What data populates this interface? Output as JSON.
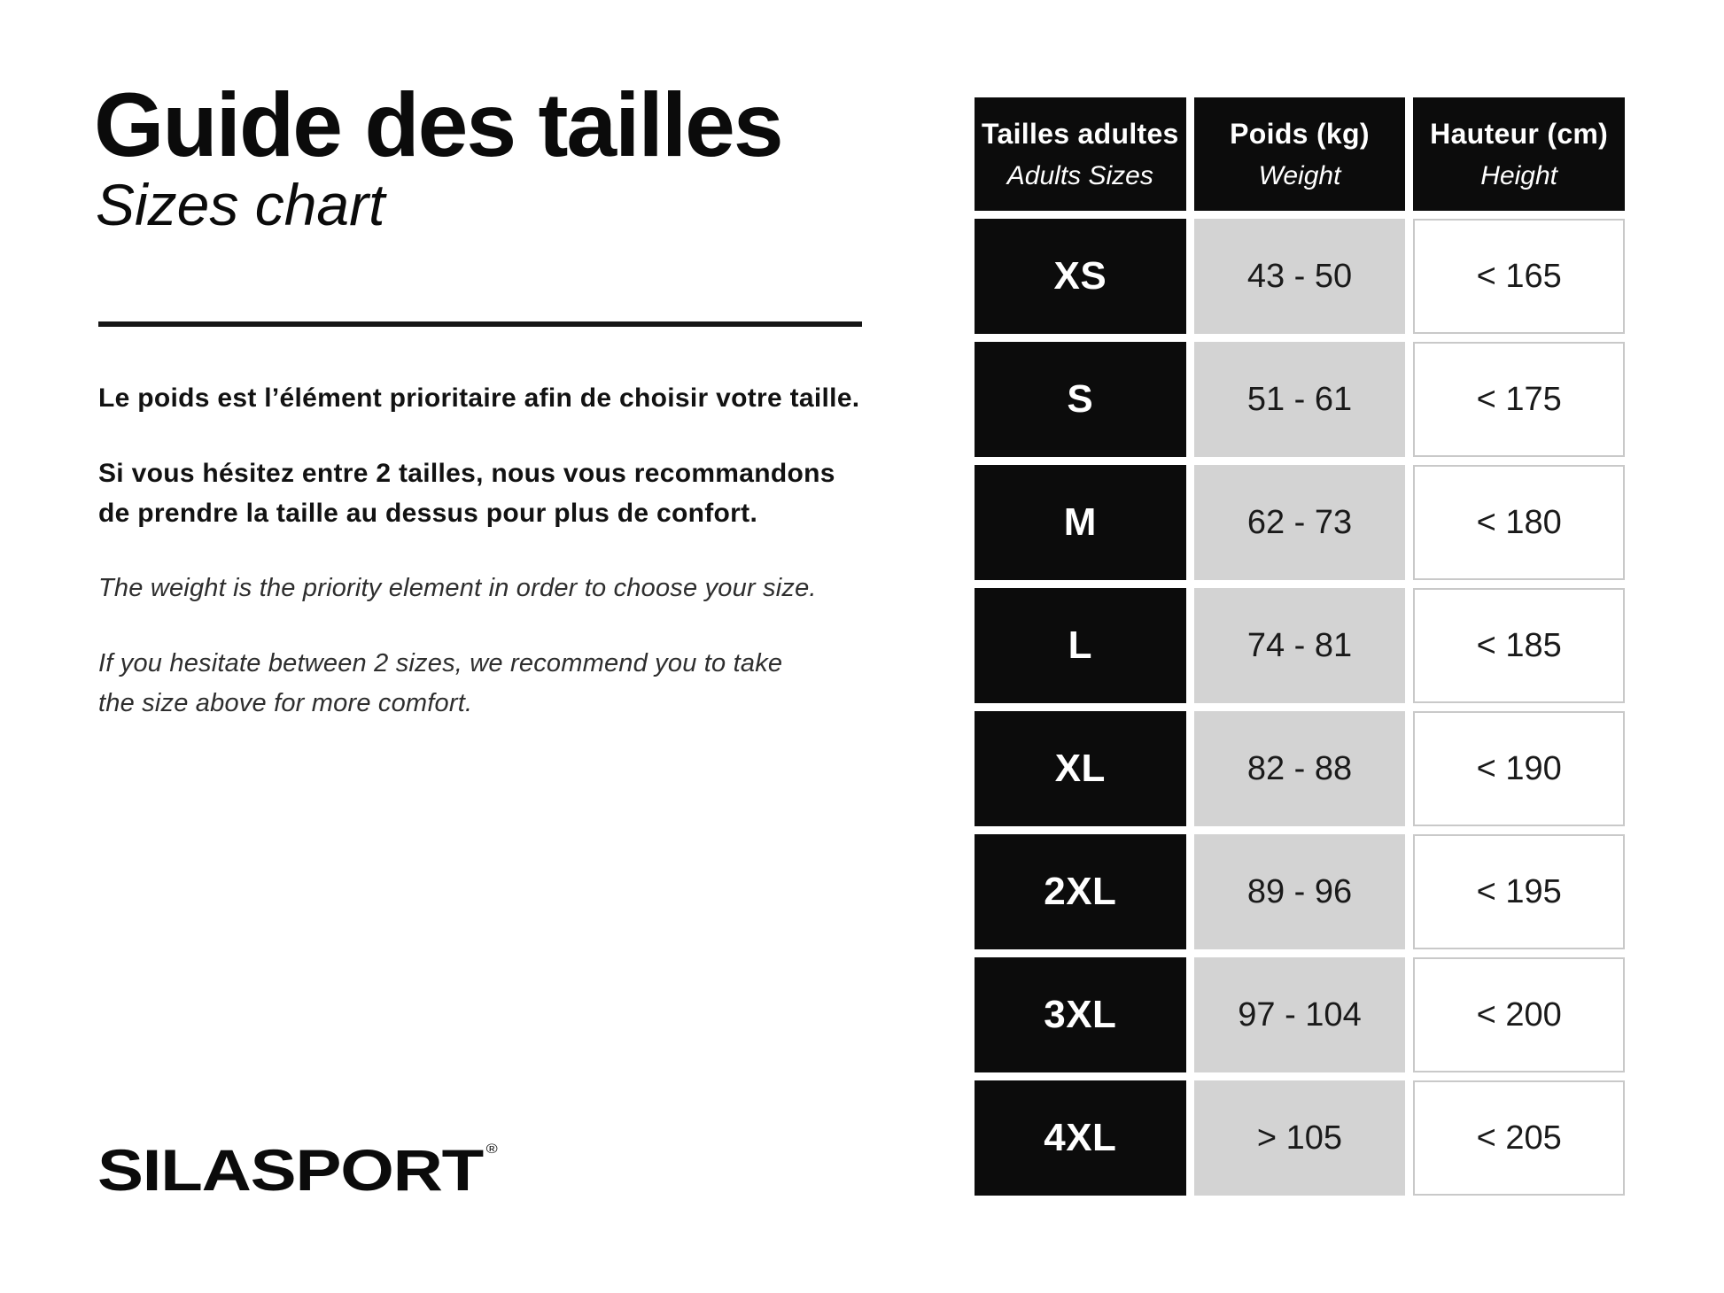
{
  "left": {
    "title_fr": "Guide des tailles",
    "title_en": "Sizes chart",
    "para_fr_1": "Le poids est l’élément prioritaire afin de choisir votre taille.",
    "para_fr_2_line1": "Si vous hésitez entre 2 tailles, nous vous recommandons",
    "para_fr_2_line2": "de prendre la taille au dessus pour plus de confort.",
    "para_en_1": "The weight is the priority element in order to choose your size.",
    "para_en_2_line1": "If you hesitate between 2 sizes, we recommend you to take",
    "para_en_2_line2": "the size above for more comfort.",
    "logo_text": "SILASPORT",
    "logo_reg": "®"
  },
  "table": {
    "header": [
      {
        "line1": "Tailles adultes",
        "line2": "Adults Sizes"
      },
      {
        "line1": "Poids (kg)",
        "line2": "Weight"
      },
      {
        "line1": "Hauteur (cm)",
        "line2": "Height"
      }
    ],
    "rows": [
      {
        "size": "XS",
        "weight": "43 - 50",
        "height": "< 165"
      },
      {
        "size": "S",
        "weight": "51 - 61",
        "height": "< 175"
      },
      {
        "size": "M",
        "weight": "62 - 73",
        "height": "< 180"
      },
      {
        "size": "L",
        "weight": "74 - 81",
        "height": "< 185"
      },
      {
        "size": "XL",
        "weight": "82 - 88",
        "height": "< 190"
      },
      {
        "size": "2XL",
        "weight": "89 - 96",
        "height": "< 195"
      },
      {
        "size": "3XL",
        "weight": "97 - 104",
        "height": "< 200"
      },
      {
        "size": "4XL",
        "weight": "> 105",
        "height": "< 205"
      }
    ]
  },
  "colors": {
    "black": "#0c0c0c",
    "gray_cell": "#d3d3d3",
    "height_cell_border": "#c9c9c9",
    "background": "#ffffff"
  }
}
